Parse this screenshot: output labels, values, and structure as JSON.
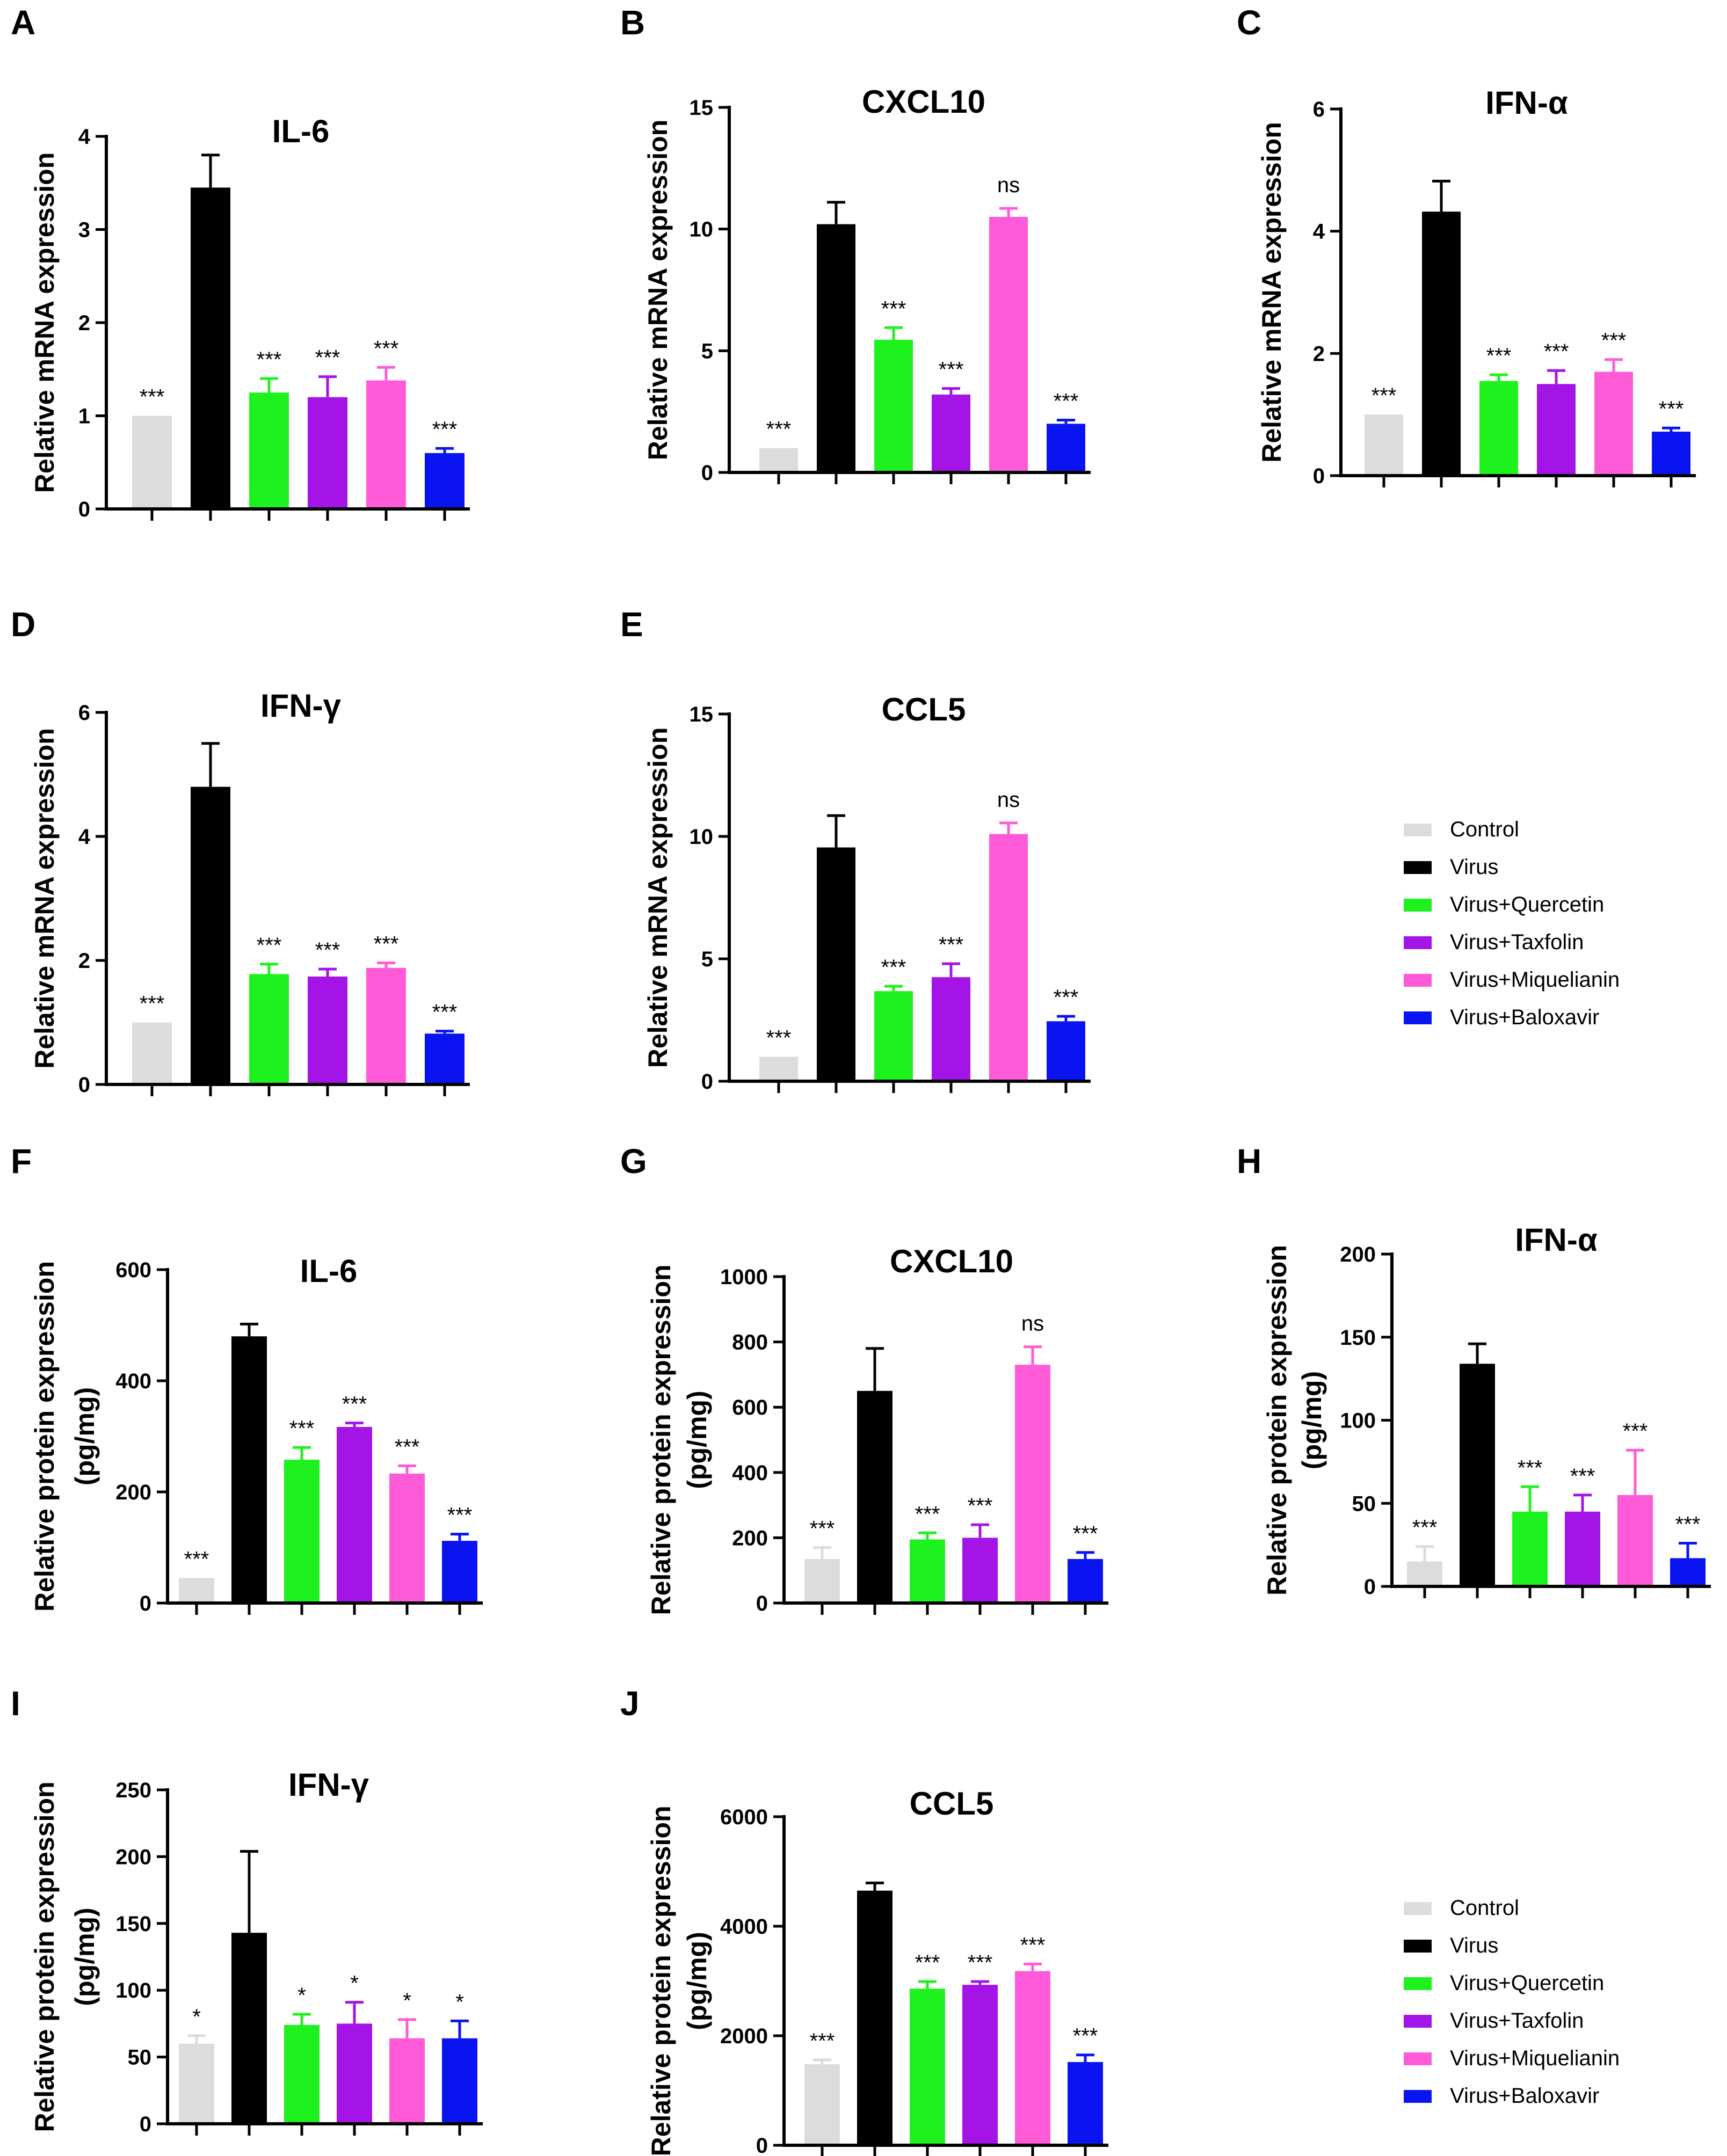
{
  "figure": {
    "legend_series": [
      {
        "name": "Control",
        "color": "#dcdcdc"
      },
      {
        "name": "Virus",
        "color": "#000000"
      },
      {
        "name": "Virus+Quercetin",
        "color": "#1ef21e"
      },
      {
        "name": "Virus+Taxfolin",
        "color": "#a414e6"
      },
      {
        "name": "Virus+Miquelianin",
        "color": "#ff5ad7"
      },
      {
        "name": "Virus+Baloxavir",
        "color": "#0a14f0"
      }
    ]
  },
  "chart_data": [
    {
      "panel": "A",
      "type": "bar",
      "title": "IL-6",
      "ylabel": "Relative mRNA expression",
      "categories": [
        "Control",
        "Virus",
        "Virus+Quercetin",
        "Virus+Taxfolin",
        "Virus+Miquelianin",
        "Virus+Baloxavir"
      ],
      "values": [
        1.0,
        3.45,
        1.25,
        1.2,
        1.38,
        0.6
      ],
      "errors": [
        0,
        0.35,
        0.15,
        0.22,
        0.14,
        0.05
      ],
      "significance": [
        "***",
        "",
        "***",
        "***",
        "***",
        "***"
      ],
      "ylim": [
        0,
        4
      ],
      "yticks": [
        0,
        1,
        2,
        3,
        4
      ],
      "ytick_labels": [
        "0",
        "1",
        "2",
        "3",
        "4"
      ]
    },
    {
      "panel": "B",
      "type": "bar",
      "title": "CXCL10",
      "ylabel": "Relative mRNA expression",
      "categories": [
        "Control",
        "Virus",
        "Virus+Quercetin",
        "Virus+Taxfolin",
        "Virus+Miquelianin",
        "Virus+Baloxavir"
      ],
      "values": [
        1.0,
        10.2,
        5.45,
        3.2,
        10.5,
        2.0
      ],
      "errors": [
        0,
        0.9,
        0.5,
        0.25,
        0.35,
        0.15
      ],
      "significance": [
        "***",
        "",
        "***",
        "***",
        "ns",
        "***"
      ],
      "ylim": [
        0,
        15
      ],
      "yticks": [
        0,
        5,
        10,
        15
      ],
      "ytick_labels": [
        "0",
        "5",
        "10",
        "15"
      ]
    },
    {
      "panel": "C",
      "type": "bar",
      "title": "IFN-α",
      "ylabel": "Relative mRNA expression",
      "categories": [
        "Control",
        "Virus",
        "Virus+Quercetin",
        "Virus+Taxfolin",
        "Virus+Miquelianin",
        "Virus+Baloxavir"
      ],
      "values": [
        1.0,
        4.32,
        1.55,
        1.5,
        1.7,
        0.72
      ],
      "errors": [
        0,
        0.5,
        0.1,
        0.22,
        0.2,
        0.06
      ],
      "significance": [
        "***",
        "",
        "***",
        "***",
        "***",
        "***"
      ],
      "ylim": [
        0,
        6
      ],
      "yticks": [
        0,
        2,
        4,
        6
      ],
      "ytick_labels": [
        "0",
        "2",
        "4",
        "6"
      ]
    },
    {
      "panel": "D",
      "type": "bar",
      "title": "IFN-γ",
      "ylabel": "Relative mRNA expression",
      "categories": [
        "Control",
        "Virus",
        "Virus+Quercetin",
        "Virus+Taxfolin",
        "Virus+Miquelianin",
        "Virus+Baloxavir"
      ],
      "values": [
        1.0,
        4.8,
        1.78,
        1.74,
        1.88,
        0.82
      ],
      "errors": [
        0,
        0.7,
        0.16,
        0.12,
        0.08,
        0.04
      ],
      "significance": [
        "***",
        "",
        "***",
        "***",
        "***",
        "***"
      ],
      "ylim": [
        0,
        6
      ],
      "yticks": [
        0,
        2,
        4,
        6
      ],
      "ytick_labels": [
        "0",
        "2",
        "4",
        "6"
      ]
    },
    {
      "panel": "E",
      "type": "bar",
      "title": "CCL5",
      "ylabel": "Relative mRNA expression",
      "categories": [
        "Control",
        "Virus",
        "Virus+Quercetin",
        "Virus+Taxfolin",
        "Virus+Miquelianin",
        "Virus+Baloxavir"
      ],
      "values": [
        1.0,
        9.55,
        3.68,
        4.25,
        10.1,
        2.45
      ],
      "errors": [
        0,
        1.3,
        0.2,
        0.55,
        0.45,
        0.2
      ],
      "significance": [
        "***",
        "",
        "***",
        "***",
        "ns",
        "***"
      ],
      "ylim": [
        0,
        15
      ],
      "yticks": [
        0,
        5,
        10,
        15
      ],
      "ytick_labels": [
        "0",
        "5",
        "10",
        "15"
      ]
    },
    {
      "panel": "F",
      "type": "bar",
      "title": "IL-6",
      "ylabel": "Relative protein expression",
      "ylabel2": "(pg/mg)",
      "categories": [
        "Control",
        "Virus",
        "Virus+Quercetin",
        "Virus+Taxfolin",
        "Virus+Miquelianin",
        "Virus+Baloxavir"
      ],
      "values": [
        45,
        480,
        258,
        317,
        233,
        112
      ],
      "errors": [
        0,
        22,
        22,
        7,
        14,
        12
      ],
      "significance": [
        "***",
        "",
        "***",
        "***",
        "***",
        "***"
      ],
      "ylim": [
        0,
        600
      ],
      "yticks": [
        0,
        200,
        400,
        600
      ],
      "ytick_labels": [
        "0",
        "200",
        "400",
        "600"
      ]
    },
    {
      "panel": "G",
      "type": "bar",
      "title": "CXCL10",
      "ylabel": "Relative protein expression",
      "ylabel2": "(pg/mg)",
      "categories": [
        "Control",
        "Virus",
        "Virus+Quercetin",
        "Virus+Taxfolin",
        "Virus+Miquelianin",
        "Virus+Baloxavir"
      ],
      "values": [
        135,
        650,
        195,
        200,
        730,
        135
      ],
      "errors": [
        35,
        130,
        20,
        40,
        55,
        20
      ],
      "significance": [
        "***",
        "",
        "***",
        "***",
        "ns",
        "***"
      ],
      "ylim": [
        0,
        1000
      ],
      "yticks": [
        0,
        200,
        400,
        600,
        800,
        1000
      ],
      "ytick_labels": [
        "0",
        "200",
        "400",
        "600",
        "800",
        "1000"
      ]
    },
    {
      "panel": "H",
      "type": "bar",
      "title": "IFN-α",
      "ylabel": "Relative protein expression",
      "ylabel2": "(pg/mg)",
      "categories": [
        "Control",
        "Virus",
        "Virus+Quercetin",
        "Virus+Taxfolin",
        "Virus+Miquelianin",
        "Virus+Baloxavir"
      ],
      "values": [
        15,
        134,
        45,
        45,
        55,
        17
      ],
      "errors": [
        9,
        12,
        15,
        10,
        27,
        9
      ],
      "significance": [
        "***",
        "",
        "***",
        "***",
        "***",
        "***"
      ],
      "ylim": [
        0,
        200
      ],
      "yticks": [
        0,
        50,
        100,
        150,
        200
      ],
      "ytick_labels": [
        "0",
        "50",
        "100",
        "150",
        "200"
      ]
    },
    {
      "panel": "I",
      "type": "bar",
      "title": "IFN-γ",
      "ylabel": "Relative protein expression",
      "ylabel2": "(pg/mg)",
      "categories": [
        "Control",
        "Virus",
        "Virus+Quercetin",
        "Virus+Taxfolin",
        "Virus+Miquelianin",
        "Virus+Baloxavir"
      ],
      "values": [
        60,
        143,
        74,
        75,
        64,
        64
      ],
      "errors": [
        6,
        61,
        8,
        16,
        14,
        13
      ],
      "significance": [
        "*",
        "",
        "*",
        "*",
        "*",
        "*"
      ],
      "ylim": [
        0,
        250
      ],
      "yticks": [
        0,
        50,
        100,
        150,
        200,
        250
      ],
      "ytick_labels": [
        "0",
        "50",
        "100",
        "150",
        "200",
        "250"
      ]
    },
    {
      "panel": "J",
      "type": "bar",
      "title": "CCL5",
      "ylabel": "Relative protein expression",
      "ylabel2": "(pg/mg)",
      "categories": [
        "Control",
        "Virus",
        "Virus+Quercetin",
        "Virus+Taxfolin",
        "Virus+Miquelianin",
        "Virus+Baloxavir"
      ],
      "values": [
        1480,
        4650,
        2860,
        2930,
        3180,
        1520
      ],
      "errors": [
        80,
        140,
        130,
        60,
        130,
        130
      ],
      "significance": [
        "***",
        "",
        "***",
        "***",
        "***",
        "***"
      ],
      "ylim": [
        0,
        6000
      ],
      "yticks": [
        0,
        2000,
        4000,
        6000
      ],
      "ytick_labels": [
        "0",
        "2000",
        "4000",
        "6000"
      ]
    }
  ]
}
